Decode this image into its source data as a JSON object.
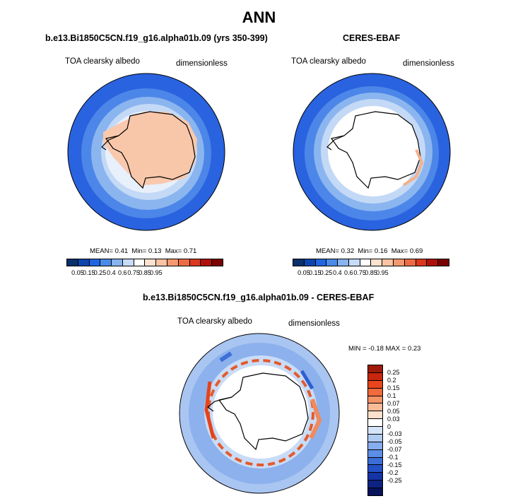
{
  "title": "ANN",
  "panels": {
    "model": {
      "title": "b.e13.Bi1850C5CN.f19_g16.alpha01b.09 (yrs 350-399)",
      "variable": "TOA clearsky albedo",
      "units": "dimensionless",
      "stats": {
        "mean_label": "MEAN=",
        "mean": "0.41",
        "min_label": "Min=",
        "min": "0.13",
        "max_label": "Max=",
        "max": "0.71"
      }
    },
    "obs": {
      "title": "CERES-EBAF",
      "variable": "TOA clearsky albedo",
      "units": "dimensionless",
      "stats": {
        "mean_label": "MEAN=",
        "mean": "0.32",
        "min_label": "Min=",
        "min": "0.16",
        "max_label": "Max=",
        "max": "0.69"
      }
    },
    "diff": {
      "title": "b.e13.Bi1850C5CN.f19_g16.alpha01b.09 - CERES-EBAF",
      "variable": "TOA clearsky albedo",
      "units": "dimensionless",
      "stats_text": "MIN =  -0.18 MAX =   0.23"
    }
  },
  "colorbar_abs": {
    "colors": [
      "#08306b",
      "#0c44ad",
      "#2166e0",
      "#4a8ae8",
      "#87b3ee",
      "#c6dbf7",
      "#ffffff",
      "#fde2cf",
      "#f9c3a4",
      "#f4996f",
      "#ec6b45",
      "#d9391f",
      "#b0100c",
      "#7a0101"
    ],
    "labels": [
      "0.05",
      "0.15",
      "0.25",
      "0.4",
      "0.6",
      "0.75",
      "0.85",
      "0.95"
    ]
  },
  "colorbar_diff": {
    "colors": [
      "#9e1a0a",
      "#c8260f",
      "#e8451c",
      "#f06a3b",
      "#f49466",
      "#f8bb98",
      "#fde0cc",
      "#ffffff",
      "#d6e4f9",
      "#b0cbf2",
      "#86aeee",
      "#5c8ee8",
      "#3b6ed8",
      "#2450c8",
      "#1534a8",
      "#0d2382",
      "#07135a"
    ],
    "labels": [
      "0.25",
      "0.2",
      "0.15",
      "0.1",
      "0.07",
      "0.05",
      "0.03",
      "0",
      "-0.03",
      "-0.05",
      "-0.07",
      "-0.1",
      "-0.15",
      "-0.2",
      "-0.25"
    ]
  }
}
